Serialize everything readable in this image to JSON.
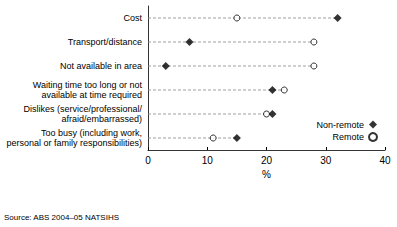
{
  "chart_data": {
    "type": "dot",
    "orientation": "horizontal",
    "categories": [
      "Cost",
      "Transport/distance",
      "Not available in area",
      "Waiting time too long or not\navailable at time required",
      "Dislikes (service/professional/\nafraid/embarrassed)",
      "Too busy (including work,\npersonal or family responsibilities)"
    ],
    "series": [
      {
        "name": "Non-remote",
        "color": "#000000",
        "marker": "diamond",
        "values": [
          32,
          7,
          3,
          21,
          21,
          15
        ]
      },
      {
        "name": "Remote",
        "color": "#000000",
        "marker": "open_circle",
        "values": [
          15,
          28,
          28,
          23,
          20,
          11
        ]
      }
    ],
    "x_label": "%",
    "xlim": [
      0,
      40
    ],
    "xticks": [
      0,
      10,
      20,
      30,
      40
    ],
    "grid": false,
    "legend": "lower right",
    "source": "Source: ABS 2004–05 NATSIHS"
  }
}
